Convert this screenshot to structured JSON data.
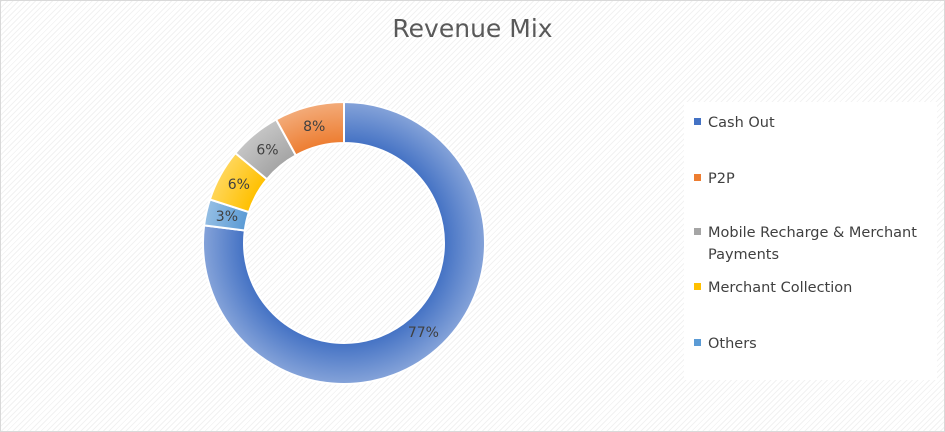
{
  "chart_data": {
    "type": "pie",
    "donut": true,
    "title": "Revenue Mix",
    "start_angle_deg": 0,
    "slices": [
      {
        "label": "Cash Out",
        "value": 77,
        "display": "77%",
        "color": "#4472c4"
      },
      {
        "label": "Others",
        "value": 3,
        "display": "3%",
        "color": "#5b9bd5"
      },
      {
        "label": "Merchant Collection",
        "value": 6,
        "display": "6%",
        "color": "#ffc000"
      },
      {
        "label": "Mobile Recharge & Merchant Payments",
        "value": 6,
        "display": "6%",
        "color": "#a5a5a5"
      },
      {
        "label": "P2P",
        "value": 8,
        "display": "8%",
        "color": "#ed7d31"
      }
    ],
    "legend": {
      "placement": "right",
      "entries": [
        {
          "label": "Cash Out",
          "color": "#4472c4"
        },
        {
          "label": "P2P",
          "color": "#ed7d31"
        },
        {
          "label": "Mobile Recharge & Merchant Payments",
          "color": "#a5a5a5"
        },
        {
          "label": "Merchant Collection",
          "color": "#ffc000"
        },
        {
          "label": "Others",
          "color": "#5b9bd5"
        }
      ]
    }
  }
}
